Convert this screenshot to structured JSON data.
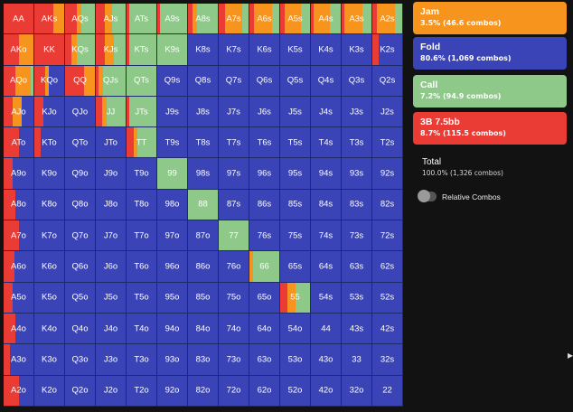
{
  "colors": {
    "jam": "#f7941d",
    "fold": "#3b44b6",
    "call": "#8ec98a",
    "raise": "#ea3b35",
    "background": "#121212"
  },
  "legend": {
    "jam": {
      "title": "Jam",
      "subtitle": "3.5% (46.6 combos)"
    },
    "fold": {
      "title": "Fold",
      "subtitle": "80.6% (1,069 combos)"
    },
    "call": {
      "title": "Call",
      "subtitle": "7.2% (94.9 combos)"
    },
    "raise": {
      "title": "3B 7.5bb",
      "subtitle": "8.7% (115.5 combos)"
    }
  },
  "total": {
    "title": "Total",
    "subtitle": "100.0% (1,326 combos)"
  },
  "relative_combos_label": "Relative Combos",
  "relative_combos_on": false,
  "hand_grid": [
    [
      {
        "hand": "AA",
        "mix": {
          "raise": 1.0
        }
      },
      {
        "hand": "AKs",
        "mix": {
          "jam": 0.35,
          "raise": 0.65
        }
      },
      {
        "hand": "AQs",
        "mix": {
          "jam": 0.15,
          "call": 0.45,
          "raise": 0.4
        }
      },
      {
        "hand": "AJs",
        "mix": {
          "jam": 0.25,
          "call": 0.45,
          "raise": 0.3
        }
      },
      {
        "hand": "ATs",
        "mix": {
          "call": 0.9,
          "raise": 0.1
        }
      },
      {
        "hand": "A9s",
        "mix": {
          "call": 0.9,
          "raise": 0.1
        }
      },
      {
        "hand": "A8s",
        "mix": {
          "jam": 0.15,
          "call": 0.7,
          "raise": 0.15
        }
      },
      {
        "hand": "A7s",
        "mix": {
          "jam": 0.6,
          "call": 0.2,
          "raise": 0.2
        }
      },
      {
        "hand": "A6s",
        "mix": {
          "jam": 0.6,
          "call": 0.25,
          "raise": 0.15
        }
      },
      {
        "hand": "A5s",
        "mix": {
          "jam": 0.55,
          "call": 0.3,
          "raise": 0.15
        }
      },
      {
        "hand": "A4s",
        "mix": {
          "jam": 0.55,
          "call": 0.35,
          "raise": 0.1
        }
      },
      {
        "hand": "A3s",
        "mix": {
          "jam": 0.6,
          "call": 0.3,
          "raise": 0.1
        }
      },
      {
        "hand": "A2s",
        "mix": {
          "jam": 0.6,
          "call": 0.25,
          "raise": 0.15
        }
      }
    ],
    [
      {
        "hand": "AKo",
        "mix": {
          "jam": 0.5,
          "raise": 0.5
        }
      },
      {
        "hand": "KK",
        "mix": {
          "raise": 1.0
        }
      },
      {
        "hand": "KQs",
        "mix": {
          "jam": 0.2,
          "call": 0.6,
          "raise": 0.2
        }
      },
      {
        "hand": "KJs",
        "mix": {
          "jam": 0.3,
          "call": 0.4,
          "raise": 0.3
        }
      },
      {
        "hand": "KTs",
        "mix": {
          "call": 0.9,
          "raise": 0.1
        }
      },
      {
        "hand": "K9s",
        "mix": {
          "call": 1.0
        }
      },
      {
        "hand": "K8s",
        "mix": {
          "fold": 1.0
        }
      },
      {
        "hand": "K7s",
        "mix": {
          "fold": 1.0
        }
      },
      {
        "hand": "K6s",
        "mix": {
          "fold": 1.0
        }
      },
      {
        "hand": "K5s",
        "mix": {
          "fold": 1.0
        }
      },
      {
        "hand": "K4s",
        "mix": {
          "fold": 1.0
        }
      },
      {
        "hand": "K3s",
        "mix": {
          "fold": 1.0
        }
      },
      {
        "hand": "K2s",
        "mix": {
          "fold": 0.8,
          "raise": 0.2
        }
      }
    ],
    [
      {
        "hand": "AQo",
        "mix": {
          "jam": 0.5,
          "call": 0.1,
          "raise": 0.4
        }
      },
      {
        "hand": "KQo",
        "mix": {
          "jam": 0.15,
          "fold": 0.5,
          "raise": 0.35
        }
      },
      {
        "hand": "QQ",
        "mix": {
          "jam": 0.35,
          "raise": 0.65
        }
      },
      {
        "hand": "QJs",
        "mix": {
          "jam": 0.15,
          "call": 0.75,
          "raise": 0.1
        }
      },
      {
        "hand": "QTs",
        "mix": {
          "call": 1.0
        }
      },
      {
        "hand": "Q9s",
        "mix": {
          "fold": 1.0
        }
      },
      {
        "hand": "Q8s",
        "mix": {
          "fold": 1.0
        }
      },
      {
        "hand": "Q7s",
        "mix": {
          "fold": 1.0
        }
      },
      {
        "hand": "Q6s",
        "mix": {
          "fold": 1.0
        }
      },
      {
        "hand": "Q5s",
        "mix": {
          "fold": 1.0
        }
      },
      {
        "hand": "Q4s",
        "mix": {
          "fold": 1.0
        }
      },
      {
        "hand": "Q3s",
        "mix": {
          "fold": 1.0
        }
      },
      {
        "hand": "Q2s",
        "mix": {
          "fold": 1.0
        }
      }
    ],
    [
      {
        "hand": "AJo",
        "mix": {
          "jam": 0.3,
          "fold": 0.4,
          "raise": 0.3
        }
      },
      {
        "hand": "KJo",
        "mix": {
          "fold": 0.7,
          "raise": 0.3
        }
      },
      {
        "hand": "QJo",
        "mix": {
          "fold": 1.0
        }
      },
      {
        "hand": "JJ",
        "mix": {
          "jam": 0.15,
          "call": 0.65,
          "raise": 0.2
        }
      },
      {
        "hand": "JTs",
        "mix": {
          "call": 0.9,
          "raise": 0.1
        }
      },
      {
        "hand": "J9s",
        "mix": {
          "fold": 1.0
        }
      },
      {
        "hand": "J8s",
        "mix": {
          "fold": 1.0
        }
      },
      {
        "hand": "J7s",
        "mix": {
          "fold": 1.0
        }
      },
      {
        "hand": "J6s",
        "mix": {
          "fold": 1.0
        }
      },
      {
        "hand": "J5s",
        "mix": {
          "fold": 1.0
        }
      },
      {
        "hand": "J4s",
        "mix": {
          "fold": 1.0
        }
      },
      {
        "hand": "J3s",
        "mix": {
          "fold": 1.0
        }
      },
      {
        "hand": "J2s",
        "mix": {
          "fold": 1.0
        }
      }
    ],
    [
      {
        "hand": "ATo",
        "mix": {
          "fold": 0.5,
          "raise": 0.5
        }
      },
      {
        "hand": "KTo",
        "mix": {
          "fold": 0.8,
          "raise": 0.2
        }
      },
      {
        "hand": "QTo",
        "mix": {
          "fold": 1.0
        }
      },
      {
        "hand": "JTo",
        "mix": {
          "fold": 1.0
        }
      },
      {
        "hand": "TT",
        "mix": {
          "jam": 0.1,
          "call": 0.65,
          "raise": 0.25
        }
      },
      {
        "hand": "T9s",
        "mix": {
          "fold": 1.0
        }
      },
      {
        "hand": "T8s",
        "mix": {
          "fold": 1.0
        }
      },
      {
        "hand": "T7s",
        "mix": {
          "fold": 1.0
        }
      },
      {
        "hand": "T6s",
        "mix": {
          "fold": 1.0
        }
      },
      {
        "hand": "T5s",
        "mix": {
          "fold": 1.0
        }
      },
      {
        "hand": "T4s",
        "mix": {
          "fold": 1.0
        }
      },
      {
        "hand": "T3s",
        "mix": {
          "fold": 1.0
        }
      },
      {
        "hand": "T2s",
        "mix": {
          "fold": 1.0
        }
      }
    ],
    [
      {
        "hand": "A9o",
        "mix": {
          "fold": 0.7,
          "raise": 0.3
        }
      },
      {
        "hand": "K9o",
        "mix": {
          "fold": 1.0
        }
      },
      {
        "hand": "Q9o",
        "mix": {
          "fold": 1.0
        }
      },
      {
        "hand": "J9o",
        "mix": {
          "fold": 1.0
        }
      },
      {
        "hand": "T9o",
        "mix": {
          "fold": 1.0
        }
      },
      {
        "hand": "99",
        "mix": {
          "call": 1.0
        }
      },
      {
        "hand": "98s",
        "mix": {
          "fold": 1.0
        }
      },
      {
        "hand": "97s",
        "mix": {
          "fold": 1.0
        }
      },
      {
        "hand": "96s",
        "mix": {
          "fold": 1.0
        }
      },
      {
        "hand": "95s",
        "mix": {
          "fold": 1.0
        }
      },
      {
        "hand": "94s",
        "mix": {
          "fold": 1.0
        }
      },
      {
        "hand": "93s",
        "mix": {
          "fold": 1.0
        }
      },
      {
        "hand": "92s",
        "mix": {
          "fold": 1.0
        }
      }
    ],
    [
      {
        "hand": "A8o",
        "mix": {
          "fold": 0.6,
          "raise": 0.4
        }
      },
      {
        "hand": "K8o",
        "mix": {
          "fold": 1.0
        }
      },
      {
        "hand": "Q8o",
        "mix": {
          "fold": 1.0
        }
      },
      {
        "hand": "J8o",
        "mix": {
          "fold": 1.0
        }
      },
      {
        "hand": "T8o",
        "mix": {
          "fold": 1.0
        }
      },
      {
        "hand": "98o",
        "mix": {
          "fold": 1.0
        }
      },
      {
        "hand": "88",
        "mix": {
          "call": 1.0
        }
      },
      {
        "hand": "87s",
        "mix": {
          "fold": 1.0
        }
      },
      {
        "hand": "86s",
        "mix": {
          "fold": 1.0
        }
      },
      {
        "hand": "85s",
        "mix": {
          "fold": 1.0
        }
      },
      {
        "hand": "84s",
        "mix": {
          "fold": 1.0
        }
      },
      {
        "hand": "83s",
        "mix": {
          "fold": 1.0
        }
      },
      {
        "hand": "82s",
        "mix": {
          "fold": 1.0
        }
      }
    ],
    [
      {
        "hand": "A7o",
        "mix": {
          "fold": 0.5,
          "raise": 0.5
        }
      },
      {
        "hand": "K7o",
        "mix": {
          "fold": 1.0
        }
      },
      {
        "hand": "Q7o",
        "mix": {
          "fold": 1.0
        }
      },
      {
        "hand": "J7o",
        "mix": {
          "fold": 1.0
        }
      },
      {
        "hand": "T7o",
        "mix": {
          "fold": 1.0
        }
      },
      {
        "hand": "97o",
        "mix": {
          "fold": 1.0
        }
      },
      {
        "hand": "87o",
        "mix": {
          "fold": 1.0
        }
      },
      {
        "hand": "77",
        "mix": {
          "call": 1.0
        }
      },
      {
        "hand": "76s",
        "mix": {
          "fold": 1.0
        }
      },
      {
        "hand": "75s",
        "mix": {
          "fold": 1.0
        }
      },
      {
        "hand": "74s",
        "mix": {
          "fold": 1.0
        }
      },
      {
        "hand": "73s",
        "mix": {
          "fold": 1.0
        }
      },
      {
        "hand": "72s",
        "mix": {
          "fold": 1.0
        }
      }
    ],
    [
      {
        "hand": "A6o",
        "mix": {
          "fold": 0.65,
          "raise": 0.35
        }
      },
      {
        "hand": "K6o",
        "mix": {
          "fold": 1.0
        }
      },
      {
        "hand": "Q6o",
        "mix": {
          "fold": 1.0
        }
      },
      {
        "hand": "J6o",
        "mix": {
          "fold": 1.0
        }
      },
      {
        "hand": "T6o",
        "mix": {
          "fold": 1.0
        }
      },
      {
        "hand": "96o",
        "mix": {
          "fold": 1.0
        }
      },
      {
        "hand": "86o",
        "mix": {
          "fold": 1.0
        }
      },
      {
        "hand": "76o",
        "mix": {
          "fold": 1.0
        }
      },
      {
        "hand": "66",
        "mix": {
          "jam": 0.12,
          "call": 0.88
        }
      },
      {
        "hand": "65s",
        "mix": {
          "fold": 1.0
        }
      },
      {
        "hand": "64s",
        "mix": {
          "fold": 1.0
        }
      },
      {
        "hand": "63s",
        "mix": {
          "fold": 1.0
        }
      },
      {
        "hand": "62s",
        "mix": {
          "fold": 1.0
        }
      }
    ],
    [
      {
        "hand": "A5o",
        "mix": {
          "fold": 0.7,
          "raise": 0.3
        }
      },
      {
        "hand": "K5o",
        "mix": {
          "fold": 1.0
        }
      },
      {
        "hand": "Q5o",
        "mix": {
          "fold": 1.0
        }
      },
      {
        "hand": "J5o",
        "mix": {
          "fold": 1.0
        }
      },
      {
        "hand": "T5o",
        "mix": {
          "fold": 1.0
        }
      },
      {
        "hand": "95o",
        "mix": {
          "fold": 1.0
        }
      },
      {
        "hand": "85o",
        "mix": {
          "fold": 1.0
        }
      },
      {
        "hand": "75o",
        "mix": {
          "fold": 1.0
        }
      },
      {
        "hand": "65o",
        "mix": {
          "fold": 1.0
        }
      },
      {
        "hand": "55",
        "mix": {
          "jam": 0.25,
          "raise": 0.25,
          "call": 0.5
        }
      },
      {
        "hand": "54s",
        "mix": {
          "fold": 1.0
        }
      },
      {
        "hand": "53s",
        "mix": {
          "fold": 1.0
        }
      },
      {
        "hand": "52s",
        "mix": {
          "fold": 1.0
        }
      }
    ],
    [
      {
        "hand": "A4o",
        "mix": {
          "fold": 0.6,
          "raise": 0.4
        }
      },
      {
        "hand": "K4o",
        "mix": {
          "fold": 1.0
        }
      },
      {
        "hand": "Q4o",
        "mix": {
          "fold": 1.0
        }
      },
      {
        "hand": "J4o",
        "mix": {
          "fold": 1.0
        }
      },
      {
        "hand": "T4o",
        "mix": {
          "fold": 1.0
        }
      },
      {
        "hand": "94o",
        "mix": {
          "fold": 1.0
        }
      },
      {
        "hand": "84o",
        "mix": {
          "fold": 1.0
        }
      },
      {
        "hand": "74o",
        "mix": {
          "fold": 1.0
        }
      },
      {
        "hand": "64o",
        "mix": {
          "fold": 1.0
        }
      },
      {
        "hand": "54o",
        "mix": {
          "fold": 1.0
        }
      },
      {
        "hand": "44",
        "mix": {
          "fold": 1.0
        }
      },
      {
        "hand": "43s",
        "mix": {
          "fold": 1.0
        }
      },
      {
        "hand": "42s",
        "mix": {
          "fold": 1.0
        }
      }
    ],
    [
      {
        "hand": "A3o",
        "mix": {
          "fold": 0.8,
          "raise": 0.2
        }
      },
      {
        "hand": "K3o",
        "mix": {
          "fold": 1.0
        }
      },
      {
        "hand": "Q3o",
        "mix": {
          "fold": 1.0
        }
      },
      {
        "hand": "J3o",
        "mix": {
          "fold": 1.0
        }
      },
      {
        "hand": "T3o",
        "mix": {
          "fold": 1.0
        }
      },
      {
        "hand": "93o",
        "mix": {
          "fold": 1.0
        }
      },
      {
        "hand": "83o",
        "mix": {
          "fold": 1.0
        }
      },
      {
        "hand": "73o",
        "mix": {
          "fold": 1.0
        }
      },
      {
        "hand": "63o",
        "mix": {
          "fold": 1.0
        }
      },
      {
        "hand": "53o",
        "mix": {
          "fold": 1.0
        }
      },
      {
        "hand": "43o",
        "mix": {
          "fold": 1.0
        }
      },
      {
        "hand": "33",
        "mix": {
          "fold": 1.0
        }
      },
      {
        "hand": "32s",
        "mix": {
          "fold": 1.0
        }
      }
    ],
    [
      {
        "hand": "A2o",
        "mix": {
          "fold": 0.5,
          "raise": 0.5
        }
      },
      {
        "hand": "K2o",
        "mix": {
          "fold": 1.0
        }
      },
      {
        "hand": "Q2o",
        "mix": {
          "fold": 1.0
        }
      },
      {
        "hand": "J2o",
        "mix": {
          "fold": 1.0
        }
      },
      {
        "hand": "T2o",
        "mix": {
          "fold": 1.0
        }
      },
      {
        "hand": "92o",
        "mix": {
          "fold": 1.0
        }
      },
      {
        "hand": "82o",
        "mix": {
          "fold": 1.0
        }
      },
      {
        "hand": "72o",
        "mix": {
          "fold": 1.0
        }
      },
      {
        "hand": "62o",
        "mix": {
          "fold": 1.0
        }
      },
      {
        "hand": "52o",
        "mix": {
          "fold": 1.0
        }
      },
      {
        "hand": "42o",
        "mix": {
          "fold": 1.0
        }
      },
      {
        "hand": "32o",
        "mix": {
          "fold": 1.0
        }
      },
      {
        "hand": "22",
        "mix": {
          "fold": 1.0
        }
      }
    ]
  ]
}
